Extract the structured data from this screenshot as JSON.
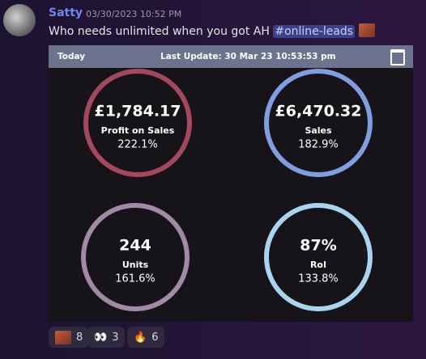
{
  "message": {
    "author": "Satty",
    "timestamp": "03/30/2023 10:52 PM",
    "text": "Who needs unlimited when you got AH",
    "mention": "#online-leads"
  },
  "embed": {
    "period": "Today",
    "last_update": "Last Update: 30 Mar 23 10:53:53 pm",
    "tiles": [
      {
        "value": "£1,784.17",
        "label": "Profit on Sales",
        "percent": "222.1%",
        "color": "#a6485d"
      },
      {
        "value": "£6,470.32",
        "label": "Sales",
        "percent": "182.9%",
        "color": "#7f9de0"
      },
      {
        "value": "244",
        "label": "Units",
        "percent": "161.6%",
        "color": "#a18aa6"
      },
      {
        "value": "87%",
        "label": "RoI",
        "percent": "133.8%",
        "color": "#a7d4ee"
      }
    ]
  },
  "reactions": [
    {
      "count": "8"
    },
    {
      "emoji": "👀",
      "count": "3"
    },
    {
      "emoji": "🔥",
      "count": "6"
    }
  ]
}
